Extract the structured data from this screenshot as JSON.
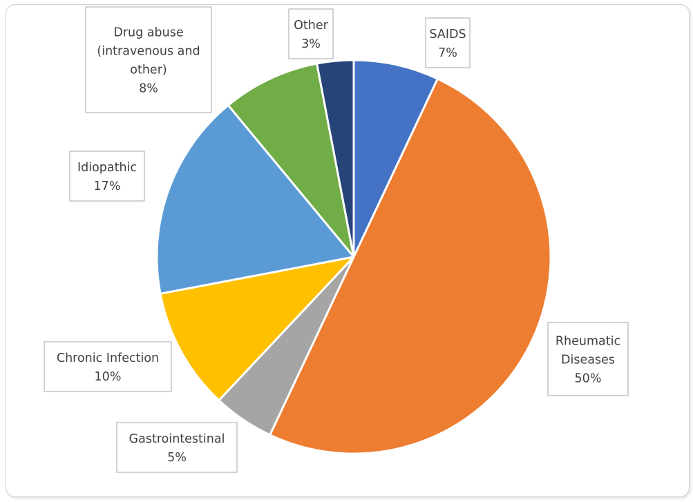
{
  "chart_data": {
    "type": "pie",
    "title": "",
    "start_angle_deg": 0,
    "direction": "clockwise",
    "slices": [
      {
        "label": "SAIDS",
        "value": 7,
        "pct_label": "7%",
        "color": "#4472C4"
      },
      {
        "label": "Rheumatic Diseases",
        "value": 50,
        "pct_label": "50%",
        "color": "#ED7D31"
      },
      {
        "label": "Gastrointestinal",
        "value": 5,
        "pct_label": "5%",
        "color": "#A5A5A5"
      },
      {
        "label": "Chronic Infection",
        "value": 10,
        "pct_label": "10%",
        "color": "#FFC000"
      },
      {
        "label": "Idiopathic",
        "value": 17,
        "pct_label": "17%",
        "color": "#5B9BD5"
      },
      {
        "label": "Drug abuse (intravenous and other)",
        "value": 8,
        "pct_label": "8%",
        "color": "#70AD47"
      },
      {
        "label": "Other",
        "value": 3,
        "pct_label": "3%",
        "color": "#264478"
      }
    ]
  }
}
